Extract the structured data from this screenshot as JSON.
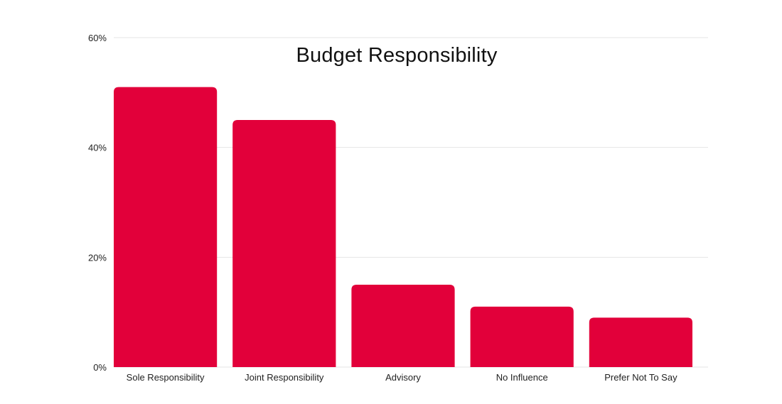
{
  "chart_data": {
    "type": "bar",
    "title": "Budget Responsibility",
    "xlabel": "",
    "ylabel": "",
    "categories": [
      "Sole Responsibility",
      "Joint Responsibility",
      "Advisory",
      "No Influence",
      "Prefer Not To Say"
    ],
    "values": [
      51,
      45,
      15,
      11,
      9
    ],
    "ylim": [
      0,
      60
    ],
    "yticks": [
      0,
      20,
      40,
      60
    ],
    "ytick_labels": [
      "0%",
      "20%",
      "40%",
      "60%"
    ],
    "grid": true,
    "legend": "none",
    "bar_color": "#E2003A",
    "grid_color": "#E5E5E5",
    "text_color": "#222222"
  }
}
